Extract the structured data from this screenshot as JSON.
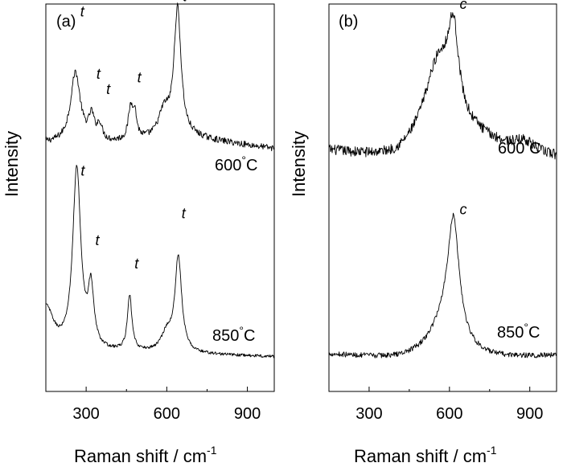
{
  "figure": {
    "xlabel_main": "Raman shift / cm",
    "xlabel_sup": "-1",
    "ylabel": "Intensity"
  },
  "chart_data": [
    {
      "type": "line",
      "panel_label": "(a)",
      "xlabel": "Raman shift / cm-1",
      "ylabel": "Intensity",
      "xlim": [
        150,
        1000
      ],
      "xticks": [
        300,
        600,
        900
      ],
      "ylim": [
        0,
        1
      ],
      "y_ticks_shown": false,
      "series": [
        {
          "name": "600°C",
          "label_text": "600",
          "label_unit": "°C",
          "offset": 0.62,
          "scale": 0.33,
          "baseline": [
            [
              150,
              0.06
            ],
            [
              400,
              0.06
            ],
            [
              700,
              0.1
            ],
            [
              1000,
              0.02
            ]
          ],
          "peaks": [
            {
              "x": 260,
              "height": 0.55,
              "width": 22
            },
            {
              "x": 320,
              "height": 0.18,
              "width": 12
            },
            {
              "x": 350,
              "height": 0.12,
              "width": 12
            },
            {
              "x": 465,
              "height": 0.22,
              "width": 10
            },
            {
              "x": 480,
              "height": 0.2,
              "width": 10
            },
            {
              "x": 590,
              "height": 0.2,
              "width": 25
            },
            {
              "x": 640,
              "height": 1.0,
              "width": 16
            }
          ],
          "noise": 0.025
        },
        {
          "name": "850°C",
          "label_text": "850",
          "label_unit": "°C",
          "offset": 0.08,
          "scale": 0.47,
          "baseline": [
            [
              150,
              0.03
            ],
            [
              450,
              0.04
            ],
            [
              750,
              0.03
            ],
            [
              1000,
              0.02
            ]
          ],
          "peaks": [
            {
              "x": 150,
              "height": 0.25,
              "width": 35
            },
            {
              "x": 265,
              "height": 1.0,
              "width": 18
            },
            {
              "x": 318,
              "height": 0.32,
              "width": 13
            },
            {
              "x": 462,
              "height": 0.3,
              "width": 10
            },
            {
              "x": 600,
              "height": 0.1,
              "width": 25
            },
            {
              "x": 643,
              "height": 0.52,
              "width": 15
            }
          ],
          "noise": 0.008
        }
      ],
      "annotations": [
        {
          "text": "t",
          "x": 278,
          "y": 0.98
        },
        {
          "text": "t",
          "x": 338,
          "y": 0.82
        },
        {
          "text": "t",
          "x": 375,
          "y": 0.78
        },
        {
          "text": "t",
          "x": 490,
          "y": 0.81
        },
        {
          "text": "t",
          "x": 660,
          "y": 1.02
        },
        {
          "text": "t",
          "x": 280,
          "y": 0.57
        },
        {
          "text": "t",
          "x": 334,
          "y": 0.39
        },
        {
          "text": "t",
          "x": 480,
          "y": 0.33
        },
        {
          "text": "t",
          "x": 655,
          "y": 0.46
        }
      ]
    },
    {
      "type": "line",
      "panel_label": "(b)",
      "xlabel": "Raman shift / cm-1",
      "ylabel": "Intensity",
      "xlim": [
        150,
        1000
      ],
      "xticks": [
        300,
        600,
        900
      ],
      "ylim": [
        0,
        1
      ],
      "y_ticks_shown": false,
      "series": [
        {
          "name": "600°C",
          "label_text": "600",
          "label_unit": "°C",
          "offset": 0.58,
          "scale": 0.38,
          "baseline": [
            [
              150,
              0.1
            ],
            [
              400,
              0.03
            ],
            [
              700,
              0.15
            ],
            [
              1000,
              0.06
            ]
          ],
          "peaks": [
            {
              "x": 560,
              "height": 0.6,
              "width": 70
            },
            {
              "x": 615,
              "height": 0.55,
              "width": 24
            },
            {
              "x": 880,
              "height": 0.06,
              "width": 40
            }
          ],
          "noise": 0.035
        },
        {
          "name": "850°C",
          "label_text": "850",
          "label_unit": "°C",
          "offset": 0.08,
          "scale": 0.37,
          "baseline": [
            [
              150,
              0.04
            ],
            [
              400,
              0.0
            ],
            [
              750,
              0.0
            ],
            [
              1000,
              0.03
            ]
          ],
          "peaks": [
            {
              "x": 585,
              "height": 0.25,
              "width": 70
            },
            {
              "x": 615,
              "height": 0.8,
              "width": 26
            }
          ],
          "noise": 0.018
        }
      ],
      "annotations": [
        {
          "text": "c",
          "x": 638,
          "y": 1.0
        },
        {
          "text": "c",
          "x": 638,
          "y": 0.47
        }
      ]
    }
  ]
}
